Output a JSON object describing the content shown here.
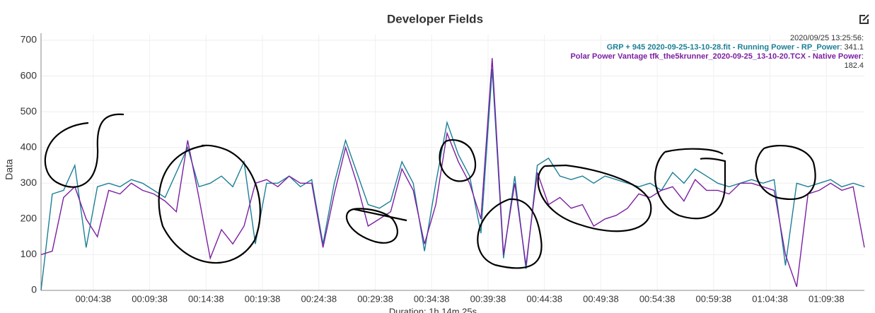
{
  "chart_data": {
    "type": "line",
    "title": "Developer Fields",
    "y_label": "Data",
    "x_label": "Duration: 1h 14m 25s",
    "tooltip": {
      "time": "2020/09/25 13:25:56:",
      "values": [
        341.1,
        182.4
      ]
    },
    "x": [
      0,
      60,
      120,
      180,
      240,
      300,
      360,
      420,
      480,
      540,
      600,
      660,
      720,
      780,
      840,
      900,
      960,
      1020,
      1080,
      1140,
      1200,
      1260,
      1320,
      1380,
      1440,
      1500,
      1560,
      1620,
      1680,
      1740,
      1800,
      1860,
      1920,
      1980,
      2040,
      2100,
      2160,
      2220,
      2280,
      2340,
      2400,
      2460,
      2520,
      2580,
      2640,
      2700,
      2760,
      2820,
      2880,
      2940,
      3000,
      3060,
      3120,
      3180,
      3240,
      3300,
      3360,
      3420,
      3480,
      3540,
      3600,
      3660,
      3720,
      3780,
      3840,
      3900,
      3960,
      4020,
      4080,
      4140,
      4200,
      4260,
      4320,
      4380
    ],
    "series": [
      {
        "name": "GRP + 945 2020-09-25-13-10-28.fit - Running Power - RP_Power",
        "color": "#1b7f96",
        "values": [
          0,
          270,
          280,
          350,
          120,
          290,
          300,
          290,
          310,
          300,
          280,
          260,
          330,
          400,
          290,
          300,
          320,
          290,
          360,
          130,
          300,
          300,
          320,
          290,
          310,
          130,
          300,
          420,
          330,
          240,
          230,
          250,
          360,
          300,
          110,
          300,
          470,
          380,
          320,
          160,
          620,
          90,
          320,
          60,
          350,
          370,
          320,
          310,
          320,
          300,
          320,
          310,
          300,
          290,
          300,
          280,
          330,
          300,
          340,
          320,
          300,
          290,
          300,
          310,
          300,
          310,
          70,
          300,
          290,
          300,
          310,
          290,
          300,
          290
        ]
      },
      {
        "name": "Polar Power Vantage tfk_the5krunner_2020-09-25_13-10-20.TCX - Native Power",
        "color": "#7b1fa2",
        "values": [
          100,
          110,
          260,
          290,
          200,
          150,
          280,
          270,
          300,
          280,
          270,
          250,
          220,
          420,
          260,
          90,
          170,
          130,
          180,
          300,
          310,
          290,
          320,
          300,
          300,
          120,
          270,
          400,
          300,
          180,
          200,
          220,
          340,
          280,
          130,
          240,
          440,
          360,
          300,
          200,
          650,
          100,
          300,
          70,
          330,
          240,
          260,
          230,
          240,
          180,
          200,
          210,
          230,
          270,
          260,
          280,
          290,
          250,
          310,
          280,
          280,
          270,
          300,
          300,
          290,
          280,
          100,
          10,
          270,
          280,
          300,
          280,
          290,
          120
        ]
      }
    ],
    "xlim": [
      0,
      4380
    ],
    "xticks": [
      {
        "value": 278,
        "label": "00:04:38"
      },
      {
        "value": 578,
        "label": "00:09:38"
      },
      {
        "value": 878,
        "label": "00:14:38"
      },
      {
        "value": 1178,
        "label": "00:19:38"
      },
      {
        "value": 1478,
        "label": "00:24:38"
      },
      {
        "value": 1778,
        "label": "00:29:38"
      },
      {
        "value": 2078,
        "label": "00:34:38"
      },
      {
        "value": 2378,
        "label": "00:39:38"
      },
      {
        "value": 2678,
        "label": "00:44:38"
      },
      {
        "value": 2978,
        "label": "00:49:38"
      },
      {
        "value": 3278,
        "label": "00:54:38"
      },
      {
        "value": 3578,
        "label": "00:59:38"
      },
      {
        "value": 3878,
        "label": "01:04:38"
      },
      {
        "value": 4178,
        "label": "01:09:38"
      }
    ],
    "ylim": [
      0,
      700
    ],
    "yticks": [
      0,
      100,
      200,
      300,
      400,
      500,
      600,
      700
    ],
    "grid": true
  }
}
